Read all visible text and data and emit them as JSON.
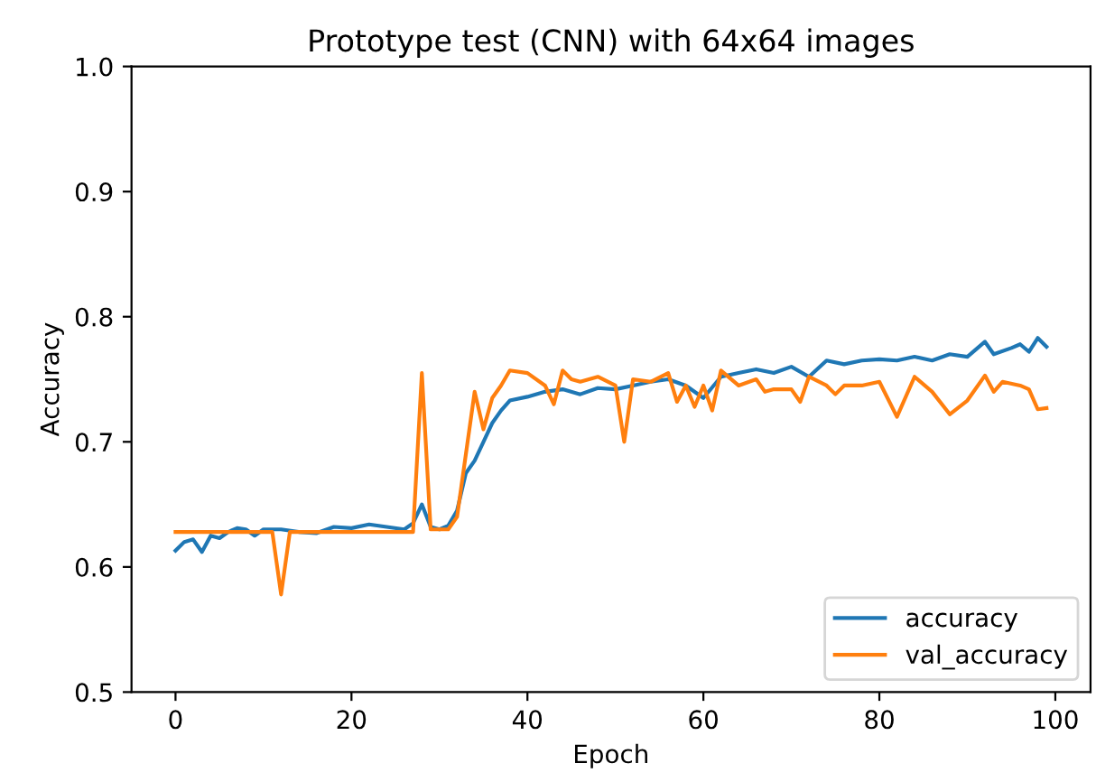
{
  "chart_data": {
    "type": "line",
    "title": "Prototype test (CNN) with 64x64 images",
    "xlabel": "Epoch",
    "ylabel": "Accuracy",
    "xlim": [
      -5,
      104
    ],
    "xticks": [
      0,
      20,
      40,
      60,
      80,
      100
    ],
    "ylim": [
      0.5,
      1.0
    ],
    "yticks": [
      0.5,
      0.6,
      0.7,
      0.8,
      0.9,
      {
        "value": 1,
        "label": "1.0"
      }
    ],
    "grid": false,
    "legend": "bottom right",
    "series": [
      {
        "name": "accuracy",
        "color": "#1f77b4",
        "x": [
          0,
          1,
          2,
          3,
          4,
          5,
          6,
          7,
          8,
          9,
          10,
          12,
          14,
          16,
          18,
          20,
          22,
          24,
          26,
          27,
          28,
          29,
          30,
          31,
          32,
          33,
          34,
          35,
          36,
          37,
          38,
          40,
          42,
          44,
          46,
          48,
          50,
          52,
          54,
          56,
          58,
          60,
          62,
          64,
          66,
          68,
          70,
          72,
          74,
          76,
          78,
          80,
          82,
          84,
          86,
          88,
          90,
          92,
          93,
          95,
          96,
          97,
          98,
          99
        ],
        "values": [
          0.613,
          0.62,
          0.622,
          0.612,
          0.625,
          0.623,
          0.628,
          0.631,
          0.63,
          0.625,
          0.63,
          0.63,
          0.628,
          0.627,
          0.632,
          0.631,
          0.634,
          0.632,
          0.63,
          0.635,
          0.65,
          0.632,
          0.63,
          0.633,
          0.645,
          0.675,
          0.685,
          0.7,
          0.715,
          0.725,
          0.733,
          0.736,
          0.74,
          0.742,
          0.738,
          0.743,
          0.742,
          0.745,
          0.748,
          0.75,
          0.745,
          0.735,
          0.752,
          0.755,
          0.758,
          0.755,
          0.76,
          0.752,
          0.765,
          0.762,
          0.765,
          0.766,
          0.765,
          0.768,
          0.765,
          0.77,
          0.768,
          0.78,
          0.77,
          0.775,
          0.778,
          0.772,
          0.783,
          0.776
        ]
      },
      {
        "name": "val_accuracy",
        "color": "#ff7f0e",
        "x": [
          0,
          10,
          11,
          12,
          13,
          27,
          28,
          29,
          31,
          32,
          33,
          34,
          35,
          36,
          37,
          38,
          40,
          42,
          43,
          44,
          45,
          46,
          48,
          50,
          51,
          52,
          54,
          56,
          57,
          58,
          59,
          60,
          61,
          62,
          64,
          66,
          67,
          68,
          70,
          71,
          72,
          74,
          75,
          76,
          78,
          80,
          82,
          84,
          86,
          88,
          90,
          92,
          93,
          94,
          96,
          97,
          98,
          99
        ],
        "values": [
          0.628,
          0.628,
          0.628,
          0.578,
          0.628,
          0.628,
          0.755,
          0.63,
          0.63,
          0.64,
          0.69,
          0.74,
          0.71,
          0.735,
          0.745,
          0.757,
          0.755,
          0.745,
          0.73,
          0.757,
          0.75,
          0.748,
          0.752,
          0.745,
          0.7,
          0.75,
          0.748,
          0.755,
          0.732,
          0.745,
          0.728,
          0.745,
          0.725,
          0.757,
          0.745,
          0.75,
          0.74,
          0.742,
          0.742,
          0.732,
          0.752,
          0.745,
          0.738,
          0.745,
          0.745,
          0.748,
          0.72,
          0.752,
          0.74,
          0.722,
          0.733,
          0.753,
          0.74,
          0.748,
          0.745,
          0.742,
          0.726,
          0.727
        ]
      }
    ]
  }
}
